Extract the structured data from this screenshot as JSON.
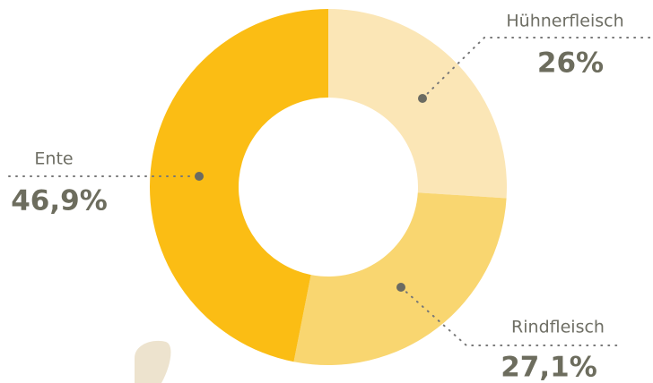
{
  "chart_data": {
    "type": "pie",
    "categories": [
      "Hühnerfleisch",
      "Rindfleisch",
      "Ente"
    ],
    "values": [
      26,
      27.1,
      46.9
    ],
    "value_labels": [
      "26%",
      "27,1%",
      "46,9%"
    ],
    "colors": [
      "#fbe6b6",
      "#f9d670",
      "#fbbd14"
    ]
  }
}
